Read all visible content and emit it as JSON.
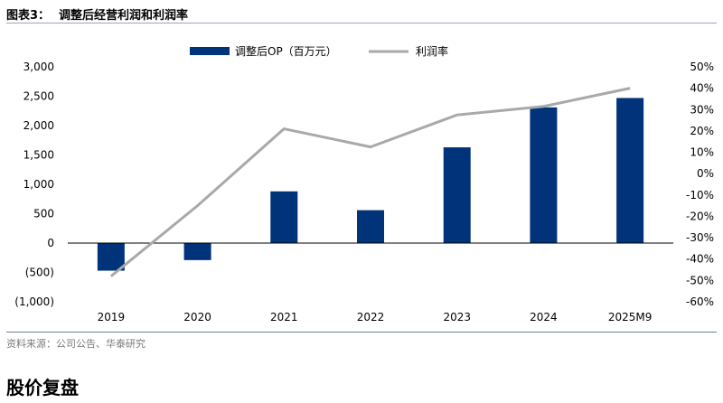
{
  "header": {
    "figure_label": "图表3：",
    "figure_title": "调整后经营利润和利润率"
  },
  "chart_data": {
    "type": "bar",
    "categories": [
      "2019",
      "2020",
      "2021",
      "2022",
      "2023",
      "2024",
      "2025M9"
    ],
    "series": [
      {
        "name": "调整后OP（百万元）",
        "kind": "bar",
        "axis": "left",
        "color": "#00337a",
        "values": [
          -470,
          -290,
          880,
          560,
          1630,
          2310,
          2470
        ]
      },
      {
        "name": "利润率",
        "kind": "line",
        "axis": "right",
        "color": "#a9a9a9",
        "values": [
          -48,
          -15,
          21,
          12.5,
          27.5,
          31.5,
          40
        ]
      }
    ],
    "left_axis": {
      "min": -1000,
      "max": 3000,
      "step": 500,
      "tick_labels": [
        "3,000",
        "2,500",
        "2,000",
        "1,500",
        "1,000",
        "500",
        "0",
        "(500)",
        "(1,000)"
      ]
    },
    "right_axis": {
      "min": -60,
      "max": 50,
      "step": 10,
      "tick_labels": [
        "50%",
        "40%",
        "30%",
        "20%",
        "10%",
        "0%",
        "-10%",
        "-20%",
        "-30%",
        "-40%",
        "-50%",
        "-60%"
      ]
    },
    "legend": [
      "调整后OP（百万元）",
      "利润率"
    ],
    "legend_position": "top",
    "grid": false
  },
  "footer": {
    "source": "资料来源：公司公告、华泰研究",
    "section_title": "股价复盘"
  }
}
